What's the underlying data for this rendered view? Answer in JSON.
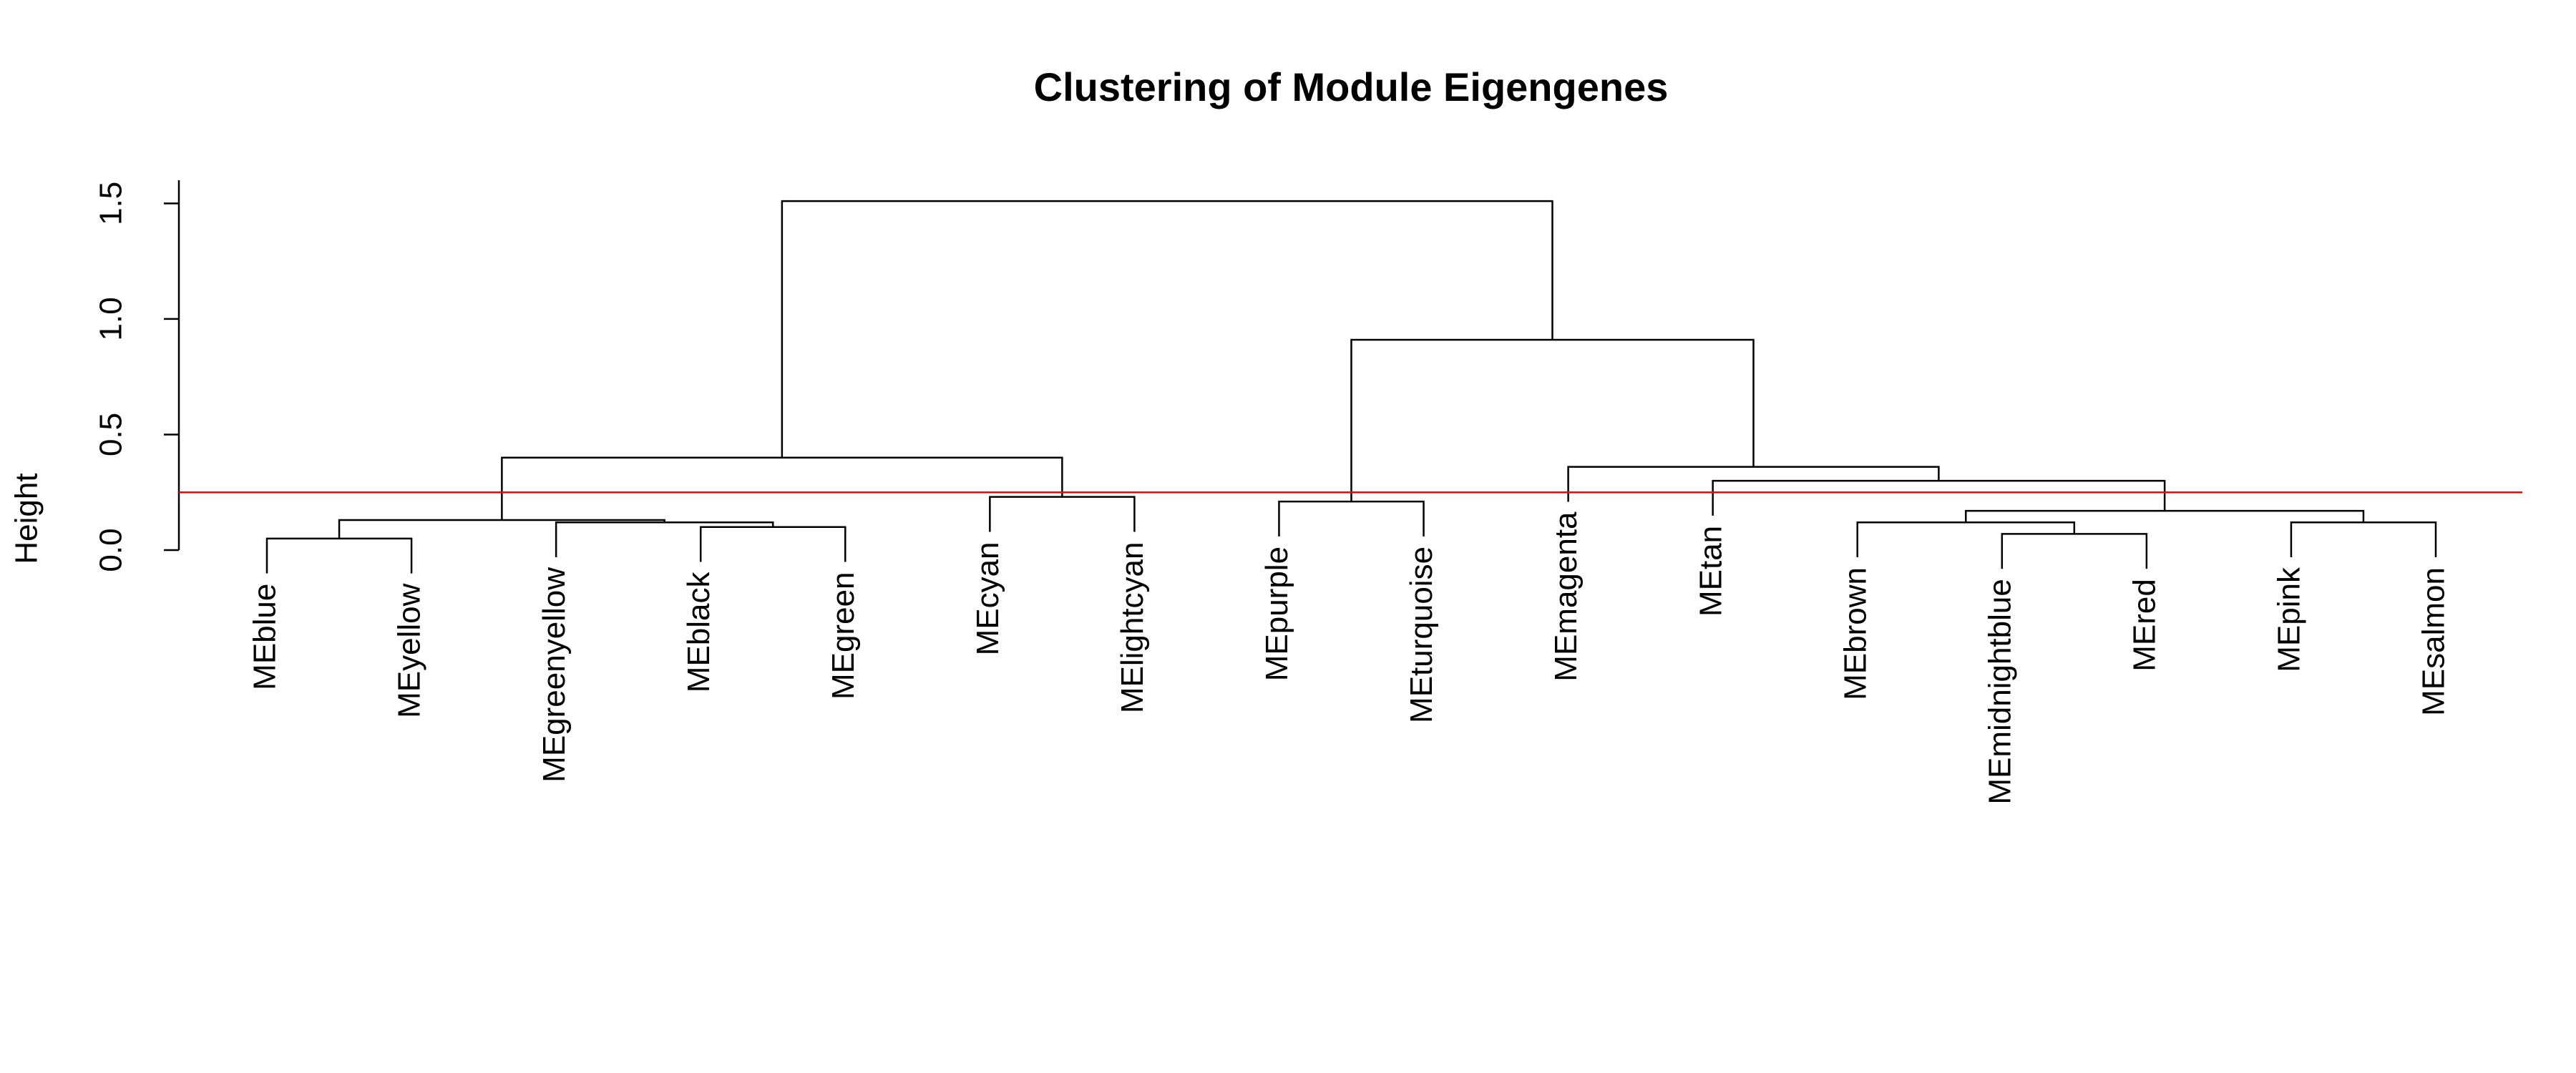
{
  "chart_data": {
    "type": "dendrogram",
    "title": "Clustering of Module Eigengenes",
    "y_label": "Height",
    "ylim": [
      0,
      1.6
    ],
    "yticks": [
      {
        "value": 0,
        "label": "0.0"
      },
      0.5,
      {
        "value": 1,
        "label": "1.0"
      },
      1.5
    ],
    "cut_height": 0.25,
    "cut_color": "#ff0000",
    "line_color": "#000000",
    "tree": {
      "height": 1.51,
      "children": [
        {
          "height": 0.4,
          "children": [
            {
              "height": 0.13,
              "children": [
                {
                  "height": 0.05,
                  "children": [
                    {
                      "label": "MEblue"
                    },
                    {
                      "label": "MEyellow"
                    }
                  ]
                },
                {
                  "height": 0.12,
                  "children": [
                    {
                      "label": "MEgreenyellow"
                    },
                    {
                      "height": 0.1,
                      "children": [
                        {
                          "label": "MEblack"
                        },
                        {
                          "label": "MEgreen"
                        }
                      ]
                    }
                  ]
                }
              ]
            },
            {
              "height": 0.23,
              "children": [
                {
                  "label": "MEcyan"
                },
                {
                  "label": "MElightcyan"
                }
              ]
            }
          ]
        },
        {
          "height": 0.91,
          "children": [
            {
              "height": 0.21,
              "children": [
                {
                  "label": "MEpurple"
                },
                {
                  "label": "MEturquoise"
                }
              ]
            },
            {
              "height": 0.36,
              "children": [
                {
                  "label": "MEmagenta"
                },
                {
                  "height": 0.3,
                  "children": [
                    {
                      "label": "MEtan"
                    },
                    {
                      "height": 0.17,
                      "children": [
                        {
                          "height": 0.12,
                          "children": [
                            {
                              "label": "MEbrown"
                            },
                            {
                              "height": 0.07,
                              "children": [
                                {
                                  "label": "MEmidnightblue"
                                },
                                {
                                  "label": "MEred"
                                }
                              ]
                            }
                          ]
                        },
                        {
                          "height": 0.12,
                          "children": [
                            {
                              "label": "MEpink"
                            },
                            {
                              "label": "MEsalmon"
                            }
                          ]
                        }
                      ]
                    }
                  ]
                }
              ]
            }
          ]
        }
      ]
    }
  }
}
